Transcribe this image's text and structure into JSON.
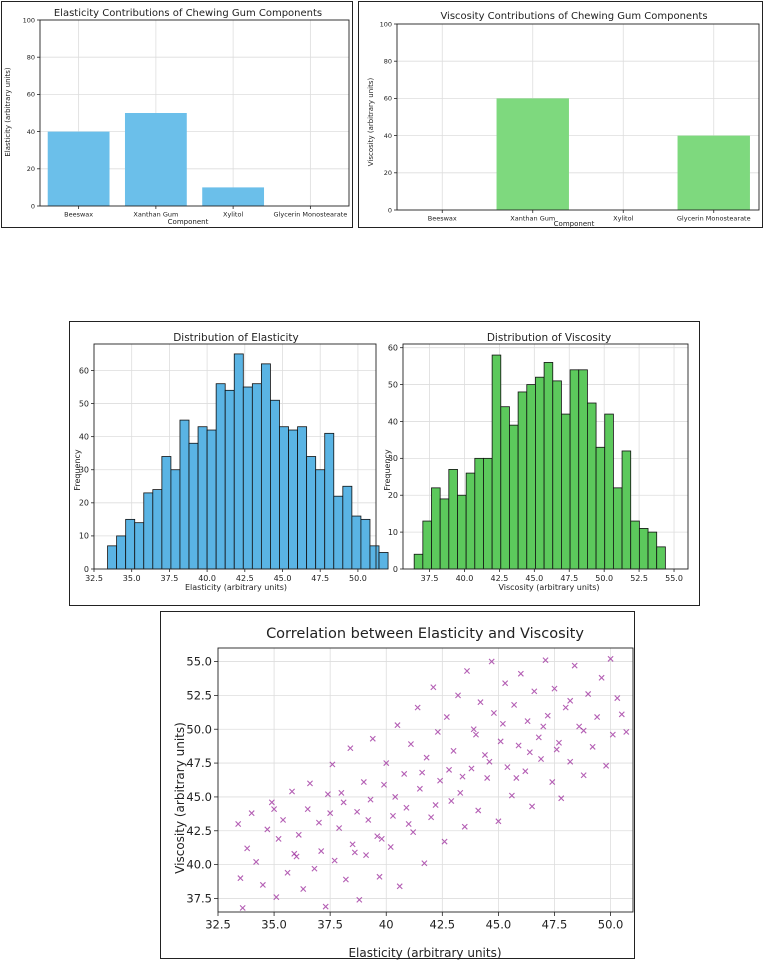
{
  "colors": {
    "elasticity_bar": "#6bbfea",
    "viscosity_bar": "#7ed97e",
    "hist_elasticity": "#5ab4e4",
    "hist_viscosity": "#5cc95c",
    "scatter": "#9b2a9b",
    "grid": "#dddddd",
    "axis": "#222222"
  },
  "chart_data": [
    {
      "type": "bar",
      "title": "Elasticity Contributions of Chewing Gum Components",
      "xlabel": "Component",
      "ylabel": "Elasticity (arbitrary units)",
      "categories": [
        "Beeswax",
        "Xanthan Gum",
        "Xylitol",
        "Glycerin Monostearate"
      ],
      "values": [
        40,
        50,
        10,
        0
      ],
      "ylim": [
        0,
        100
      ],
      "yticks": [
        0,
        20,
        40,
        60,
        80,
        100
      ],
      "yticklabels": [
        "0",
        "20",
        "40",
        "60",
        "80",
        "100"
      ],
      "grid": true
    },
    {
      "type": "bar",
      "title": "Viscosity Contributions of Chewing Gum Components",
      "xlabel": "Component",
      "ylabel": "Viscosity (arbitrary units)",
      "categories": [
        "Beeswax",
        "Xanthan Gum",
        "Xylitol",
        "Glycerin Monostearate"
      ],
      "values": [
        0,
        60,
        0,
        40
      ],
      "ylim": [
        0,
        100
      ],
      "yticks": [
        0,
        20,
        40,
        60,
        80,
        100
      ],
      "yticklabels": [
        "0",
        "20",
        "40",
        "60",
        "80",
        "100"
      ],
      "grid": true
    },
    {
      "type": "bar",
      "title": "Distribution of Elasticity",
      "xlabel": "Elasticity (arbitrary units)",
      "ylabel": "Frequency",
      "bin_start": 33.4,
      "bin_width": 0.6,
      "values": [
        7,
        10,
        15,
        14,
        23,
        24,
        34,
        30,
        45,
        38,
        43,
        42,
        56,
        54,
        65,
        55,
        56,
        62,
        51,
        43,
        42,
        43,
        34,
        30,
        41,
        22,
        25,
        16,
        15,
        7,
        5
      ],
      "xlim": [
        32.5,
        51.2
      ],
      "ylim": [
        0,
        68
      ],
      "xticks": [
        32.5,
        35.0,
        37.5,
        40.0,
        42.5,
        45.0,
        47.5,
        50.0
      ],
      "xticklabels": [
        "32.5",
        "35.0",
        "37.5",
        "40.0",
        "42.5",
        "45.0",
        "47.5",
        "50.0"
      ],
      "yticks": [
        0,
        10,
        20,
        30,
        40,
        50,
        60
      ],
      "yticklabels": [
        "0",
        "10",
        "20",
        "30",
        "40",
        "50",
        "60"
      ],
      "grid": true
    },
    {
      "type": "bar",
      "title": "Distribution of Viscosity",
      "xlabel": "Viscosity (arbitrary units)",
      "ylabel": "Frequency",
      "bin_start": 36.4,
      "bin_width": 0.62,
      "values": [
        4,
        13,
        22,
        19,
        27,
        20,
        26,
        30,
        30,
        58,
        44,
        39,
        48,
        50,
        52,
        56,
        51,
        42,
        54,
        54,
        45,
        33,
        42,
        22,
        32,
        13,
        11,
        10,
        6
      ],
      "xlim": [
        35.6,
        56.0
      ],
      "ylim": [
        0,
        61
      ],
      "xticks": [
        37.5,
        40.0,
        42.5,
        45.0,
        47.5,
        50.0,
        52.5,
        55.0
      ],
      "xticklabels": [
        "37.5",
        "40.0",
        "42.5",
        "45.0",
        "47.5",
        "50.0",
        "52.5",
        "55.0"
      ],
      "yticks": [
        0,
        10,
        20,
        30,
        40,
        50,
        60
      ],
      "yticklabels": [
        "0",
        "10",
        "20",
        "30",
        "40",
        "50",
        "60"
      ],
      "grid": true
    },
    {
      "type": "scatter",
      "marker": "x",
      "title": "Correlation between Elasticity and Viscosity",
      "xlabel": "Elasticity (arbitrary units)",
      "ylabel": "Viscosity (arbitrary units)",
      "xlim": [
        32.5,
        51.0
      ],
      "ylim": [
        36.5,
        56.0
      ],
      "xticks": [
        32.5,
        35.0,
        37.5,
        40.0,
        42.5,
        45.0,
        47.5,
        50.0
      ],
      "xticklabels": [
        "32.5",
        "35.0",
        "37.5",
        "40",
        "42.5",
        "45.0",
        "47.5",
        "50.0"
      ],
      "yticks": [
        37.5,
        40.0,
        42.5,
        45.0,
        47.5,
        50.0,
        52.5,
        55.0
      ],
      "yticklabels": [
        "37.5",
        "40.0",
        "42.5",
        "45.0",
        "47.5",
        "50.0",
        "52.5",
        "55.0"
      ],
      "grid": true,
      "points": [
        [
          33.6,
          36.8
        ],
        [
          33.5,
          39.0
        ],
        [
          33.8,
          41.2
        ],
        [
          33.4,
          43.0
        ],
        [
          34.0,
          43.8
        ],
        [
          34.2,
          40.2
        ],
        [
          34.5,
          38.5
        ],
        [
          34.7,
          42.6
        ],
        [
          34.9,
          44.6
        ],
        [
          35.1,
          37.6
        ],
        [
          35.2,
          41.9
        ],
        [
          35.4,
          43.3
        ],
        [
          35.6,
          39.4
        ],
        [
          35.8,
          45.4
        ],
        [
          35.9,
          40.8
        ],
        [
          36.1,
          42.2
        ],
        [
          36.3,
          38.2
        ],
        [
          36.5,
          44.1
        ],
        [
          36.6,
          46.0
        ],
        [
          36.8,
          39.7
        ],
        [
          37.0,
          43.1
        ],
        [
          37.1,
          41.0
        ],
        [
          37.3,
          36.9
        ],
        [
          37.4,
          45.2
        ],
        [
          37.6,
          47.4
        ],
        [
          37.7,
          40.3
        ],
        [
          37.9,
          42.7
        ],
        [
          38.1,
          44.6
        ],
        [
          38.2,
          38.9
        ],
        [
          38.4,
          48.6
        ],
        [
          38.5,
          41.5
        ],
        [
          38.7,
          43.9
        ],
        [
          38.8,
          37.4
        ],
        [
          39.0,
          46.1
        ],
        [
          39.1,
          40.7
        ],
        [
          39.3,
          44.8
        ],
        [
          39.4,
          49.3
        ],
        [
          39.6,
          42.1
        ],
        [
          39.7,
          39.1
        ],
        [
          39.9,
          45.9
        ],
        [
          40.0,
          47.5
        ],
        [
          40.2,
          41.3
        ],
        [
          40.3,
          43.6
        ],
        [
          40.5,
          50.3
        ],
        [
          40.6,
          38.4
        ],
        [
          40.8,
          46.7
        ],
        [
          40.9,
          44.2
        ],
        [
          41.1,
          48.9
        ],
        [
          41.2,
          42.4
        ],
        [
          41.4,
          51.6
        ],
        [
          41.5,
          45.6
        ],
        [
          41.7,
          40.1
        ],
        [
          41.8,
          47.9
        ],
        [
          42.0,
          43.5
        ],
        [
          42.1,
          53.1
        ],
        [
          42.3,
          49.8
        ],
        [
          42.4,
          46.2
        ],
        [
          42.6,
          41.7
        ],
        [
          42.7,
          50.9
        ],
        [
          42.9,
          44.7
        ],
        [
          43.0,
          48.4
        ],
        [
          43.2,
          52.5
        ],
        [
          43.3,
          45.3
        ],
        [
          43.5,
          42.8
        ],
        [
          43.6,
          54.3
        ],
        [
          43.8,
          47.1
        ],
        [
          43.9,
          50.0
        ],
        [
          44.1,
          44.0
        ],
        [
          44.2,
          52.0
        ],
        [
          44.4,
          48.1
        ],
        [
          44.5,
          46.4
        ],
        [
          44.7,
          55.0
        ],
        [
          44.8,
          51.2
        ],
        [
          45.0,
          43.2
        ],
        [
          45.1,
          49.1
        ],
        [
          45.3,
          53.4
        ],
        [
          45.4,
          47.2
        ],
        [
          45.6,
          45.1
        ],
        [
          45.7,
          51.8
        ],
        [
          45.9,
          48.8
        ],
        [
          46.0,
          54.1
        ],
        [
          46.2,
          46.9
        ],
        [
          46.3,
          50.6
        ],
        [
          46.5,
          44.3
        ],
        [
          46.6,
          52.8
        ],
        [
          46.8,
          49.4
        ],
        [
          46.9,
          47.8
        ],
        [
          47.1,
          55.1
        ],
        [
          47.2,
          51.0
        ],
        [
          47.4,
          46.1
        ],
        [
          47.5,
          53.0
        ],
        [
          47.7,
          49.0
        ],
        [
          47.8,
          44.9
        ],
        [
          48.0,
          51.6
        ],
        [
          48.2,
          47.6
        ],
        [
          48.4,
          54.7
        ],
        [
          48.6,
          50.2
        ],
        [
          48.8,
          46.6
        ],
        [
          49.0,
          52.6
        ],
        [
          49.2,
          48.7
        ],
        [
          49.4,
          50.9
        ],
        [
          49.6,
          53.8
        ],
        [
          49.8,
          47.3
        ],
        [
          50.0,
          55.2
        ],
        [
          50.1,
          49.6
        ],
        [
          50.3,
          52.3
        ],
        [
          50.5,
          51.1
        ],
        [
          50.7,
          49.8
        ],
        [
          35.0,
          44.1
        ],
        [
          36.0,
          40.6
        ],
        [
          37.5,
          43.8
        ],
        [
          38.0,
          45.3
        ],
        [
          38.6,
          40.9
        ],
        [
          39.2,
          43.3
        ],
        [
          39.8,
          41.9
        ],
        [
          40.4,
          45.0
        ],
        [
          41.0,
          43.0
        ],
        [
          41.6,
          46.8
        ],
        [
          42.2,
          44.4
        ],
        [
          42.8,
          47.0
        ],
        [
          43.4,
          46.5
        ],
        [
          44.0,
          49.6
        ],
        [
          44.6,
          47.6
        ],
        [
          45.2,
          50.4
        ],
        [
          45.8,
          46.4
        ],
        [
          46.4,
          48.3
        ],
        [
          47.0,
          50.2
        ],
        [
          47.6,
          48.5
        ],
        [
          48.2,
          52.1
        ],
        [
          48.8,
          49.9
        ]
      ]
    }
  ]
}
